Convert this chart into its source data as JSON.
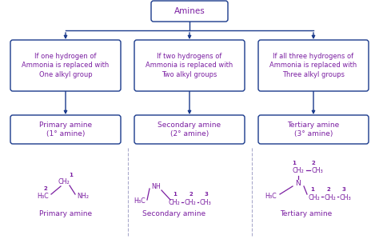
{
  "bg_color": "#ffffff",
  "box_edge_color": "#1a3a8c",
  "arrow_color": "#1a3a8c",
  "title_text": "Amines",
  "title_fill": "#ffffff",
  "title_text_color": "#7b1fa2",
  "text_color": "#7b1fa2",
  "top_boxes": [
    "If one hydrogen of\nAmmonia is replaced with\nOne alkyl group",
    "If two hydrogens of\nAmmonia is replaced with\nTwo alkyl groups",
    "If all three hydrogens of\nAmmonia is replaced with\nThree alkyl groups"
  ],
  "bottom_boxes": [
    "Primary amine\n(1° amine)",
    "Secondary amine\n(2° amine)",
    "Tertiary amine\n(3° amine)"
  ],
  "structure_labels": [
    "Primary amine",
    "Secondary amine",
    "Tertiary amine"
  ],
  "fig_width": 4.74,
  "fig_height": 3.04,
  "dpi": 100
}
